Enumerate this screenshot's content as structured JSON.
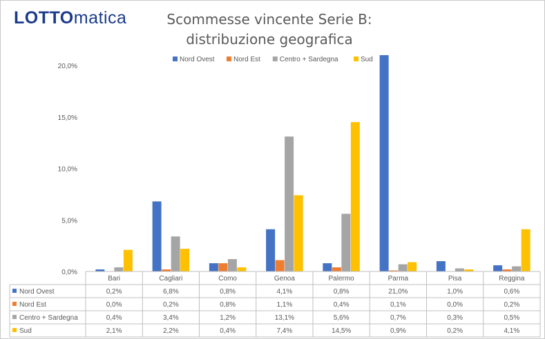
{
  "logo": {
    "part1": "LOTTO",
    "part2": "matica"
  },
  "chart_data": {
    "type": "bar",
    "title": "Scommesse vincente Serie B: distribuzione geografica",
    "title_lines": [
      "Scommesse vincente Serie B:",
      "distribuzione geografica"
    ],
    "categories": [
      "Bari",
      "Cagliari",
      "Como",
      "Genoa",
      "Palermo",
      "Parma",
      "Pisa",
      "Reggina"
    ],
    "series": [
      {
        "name": "Nord Ovest",
        "color": "#4472c4",
        "values": [
          0.2,
          6.8,
          0.8,
          4.1,
          0.8,
          21.0,
          1.0,
          0.6
        ],
        "labels": [
          "0,2%",
          "6,8%",
          "0,8%",
          "4,1%",
          "0,8%",
          "21,0%",
          "1,0%",
          "0,6%"
        ]
      },
      {
        "name": "Nord Est",
        "color": "#ed7d31",
        "values": [
          0.0,
          0.2,
          0.8,
          1.1,
          0.4,
          0.1,
          0.0,
          0.2
        ],
        "labels": [
          "0,0%",
          "0,2%",
          "0,8%",
          "1,1%",
          "0,4%",
          "0,1%",
          "0,0%",
          "0,2%"
        ]
      },
      {
        "name": "Centro + Sardegna",
        "color": "#a5a5a5",
        "values": [
          0.4,
          3.4,
          1.2,
          13.1,
          5.6,
          0.7,
          0.3,
          0.5
        ],
        "labels": [
          "0,4%",
          "3,4%",
          "1,2%",
          "13,1%",
          "5,6%",
          "0,7%",
          "0,3%",
          "0,5%"
        ]
      },
      {
        "name": "Sud",
        "color": "#ffc000",
        "values": [
          2.1,
          2.2,
          0.4,
          7.4,
          14.5,
          0.9,
          0.2,
          4.1
        ],
        "labels": [
          "2,1%",
          "2,2%",
          "0,4%",
          "7,4%",
          "14,5%",
          "0,9%",
          "0,2%",
          "4,1%"
        ]
      }
    ],
    "ylim": [
      0,
      20
    ],
    "yticks": [
      0,
      5,
      10,
      15,
      20
    ],
    "ytick_labels": [
      "0,0%",
      "5,0%",
      "10,0%",
      "15,0%",
      "20,0%"
    ],
    "legend_position": "top",
    "grid": false,
    "data_table": true
  }
}
